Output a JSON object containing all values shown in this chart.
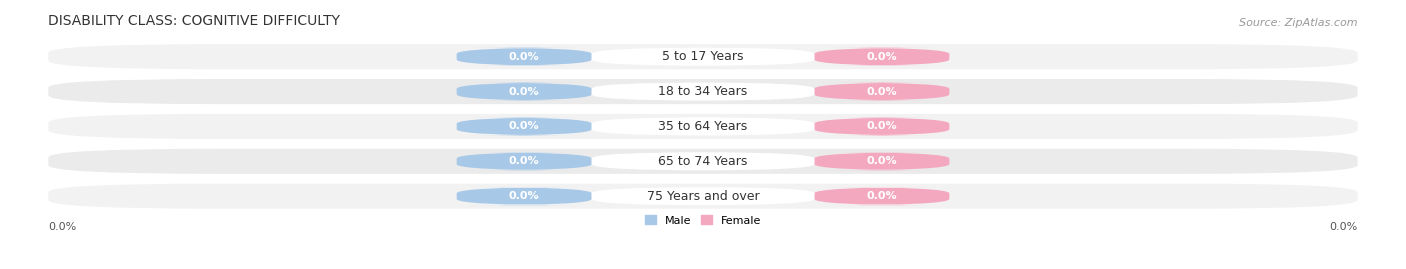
{
  "title": "DISABILITY CLASS: COGNITIVE DIFFICULTY",
  "source": "Source: ZipAtlas.com",
  "categories": [
    "5 to 17 Years",
    "18 to 34 Years",
    "35 to 64 Years",
    "65 to 74 Years",
    "75 Years and over"
  ],
  "male_values": [
    0.0,
    0.0,
    0.0,
    0.0,
    0.0
  ],
  "female_values": [
    0.0,
    0.0,
    0.0,
    0.0,
    0.0
  ],
  "male_color": "#a8c8e8",
  "female_color": "#f4a8c0",
  "row_bg_color": "#eeeeee",
  "row_bg_light": "#f7f7f7",
  "axis_label_left": "0.0%",
  "axis_label_right": "0.0%",
  "title_fontsize": 10,
  "source_fontsize": 8,
  "label_fontsize": 8,
  "bar_label_fontsize": 8,
  "cat_label_fontsize": 9,
  "background_color": "#ffffff",
  "max_val": 1.0,
  "male_label": "Male",
  "female_label": "Female"
}
